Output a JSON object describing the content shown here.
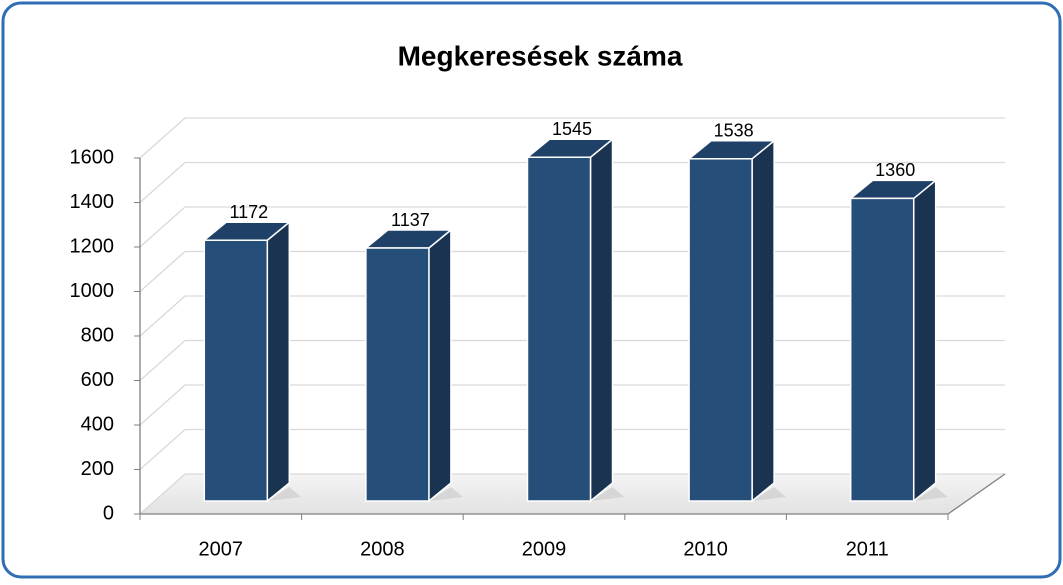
{
  "chart_data": {
    "type": "bar",
    "title": "Megkeresések száma",
    "categories": [
      "2007",
      "2008",
      "2009",
      "2010",
      "2011"
    ],
    "values": [
      1172,
      1137,
      1545,
      1538,
      1360
    ],
    "color": "#254e78",
    "ylim": [
      0,
      1600
    ],
    "yticks": [
      0,
      200,
      400,
      600,
      800,
      1000,
      1200,
      1400,
      1600
    ],
    "grid": true
  }
}
